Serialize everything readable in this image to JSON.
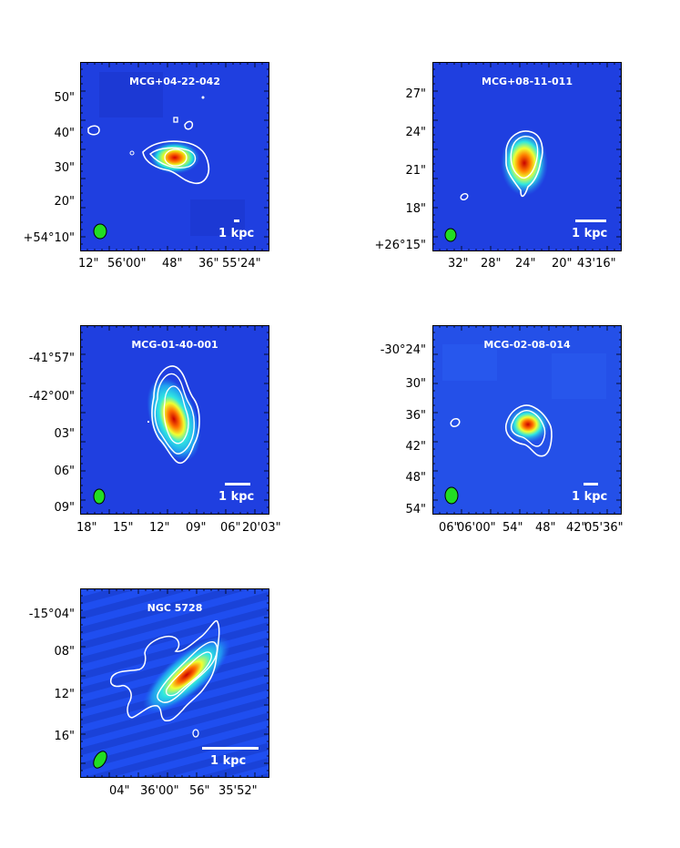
{
  "panels": [
    {
      "name": "MCG+04-22-042",
      "scale_label": "1 kpc",
      "y_ticks": [
        "50\"",
        "40\"",
        "30\"",
        "20\"",
        "+54°10\""
      ],
      "x_ticks": [
        "12\"",
        "56'00\"",
        "48\"",
        "36\"",
        "55'24\""
      ]
    },
    {
      "name": "MCG+08-11-011",
      "scale_label": "1 kpc",
      "y_ticks": [
        "27\"",
        "24\"",
        "21\"",
        "18\"",
        "+26°15\""
      ],
      "x_ticks": [
        "32\"",
        "28\"",
        "24\"",
        "20\"",
        "43'16\""
      ]
    },
    {
      "name": "MCG-01-40-001",
      "scale_label": "1 kpc",
      "y_ticks": [
        "-41°57\"",
        "-42°00\"",
        "03\"",
        "06\"",
        "09\""
      ],
      "x_ticks": [
        "18\"",
        "15\"",
        "12\"",
        "09\"",
        "06\"",
        "20'03\""
      ]
    },
    {
      "name": "MCG-02-08-014",
      "scale_label": "1 kpc",
      "y_ticks": [
        "-30°24\"",
        "30\"",
        "36\"",
        "42\"",
        "48\"",
        "54\""
      ],
      "x_ticks": [
        "06\"",
        "06'00\"",
        "54\"",
        "48\"",
        "42\"",
        "05'36\""
      ]
    },
    {
      "name": "NGC 5728",
      "scale_label": "1 kpc",
      "y_ticks": [
        "-15°04\"",
        "08\"",
        "12\"",
        "16\""
      ],
      "x_ticks": [
        "04\"",
        "36'00\"",
        "56\"",
        "35'52\""
      ]
    }
  ],
  "colors": {
    "background_blue": "#1f3fe0",
    "contour": "#ffffff",
    "beam": "#22dd22"
  }
}
